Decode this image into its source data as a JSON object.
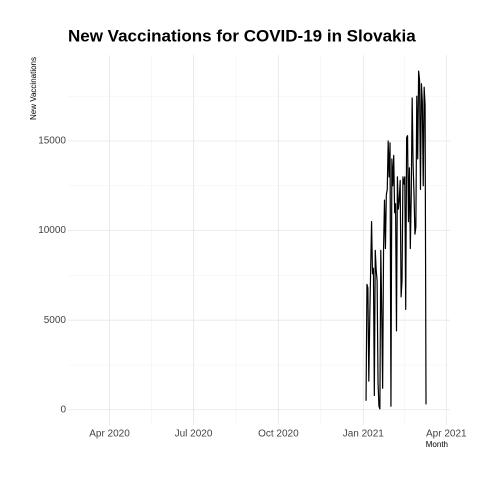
{
  "chart_data": {
    "type": "line",
    "title": "New Vaccinations for COVID-19 in Slovakia",
    "x_label": "Month",
    "y_label": "New Vaccinations",
    "x": [
      278,
      279,
      280,
      281,
      282,
      283,
      284,
      285,
      286,
      287,
      288,
      289,
      290,
      291,
      292,
      293,
      294,
      295,
      296,
      297,
      298,
      299,
      300,
      301,
      302,
      303,
      304,
      305,
      306,
      307,
      308,
      309,
      310,
      311,
      312,
      313,
      314,
      315,
      316,
      317,
      318,
      319,
      320,
      321,
      322,
      323,
      324,
      325,
      326,
      327,
      328,
      329,
      330,
      331,
      332,
      333,
      334,
      335,
      336,
      337,
      338,
      339,
      340,
      341,
      342,
      343
    ],
    "series": [
      {
        "name": "New Vaccinations",
        "color": "#000000",
        "values": [
          500,
          7000,
          6800,
          1600,
          5000,
          7800,
          10500,
          7600,
          7900,
          800,
          8900,
          7800,
          7200,
          1500,
          200,
          50,
          8900,
          5500,
          1200,
          9000,
          11700,
          9000,
          12000,
          12300,
          15000,
          13000,
          14900,
          200,
          14000,
          12500,
          14200,
          11000,
          11500,
          4400,
          13000,
          11200,
          11700,
          12800,
          6300,
          7200,
          13000,
          12600,
          13000,
          5600,
          15200,
          15300,
          10500,
          13500,
          9000,
          12000,
          17400,
          13700,
          12000,
          9800,
          10200,
          17500,
          14000,
          18900,
          18400,
          12300,
          18200,
          17200,
          12500,
          18000,
          17000,
          300
        ]
      }
    ],
    "xlim": [
      -45,
      369
    ],
    "xticks": [
      {
        "value": 0,
        "label": "Apr 2020"
      },
      {
        "value": 91,
        "label": "Jul 2020"
      },
      {
        "value": 183,
        "label": "Oct 2020"
      },
      {
        "value": 275,
        "label": "Jan 2021"
      },
      {
        "value": 365,
        "label": "Apr 2021"
      }
    ],
    "ylim": [
      -850,
      19800
    ],
    "yticks": [
      0,
      5000,
      10000,
      15000
    ],
    "grid": true
  }
}
